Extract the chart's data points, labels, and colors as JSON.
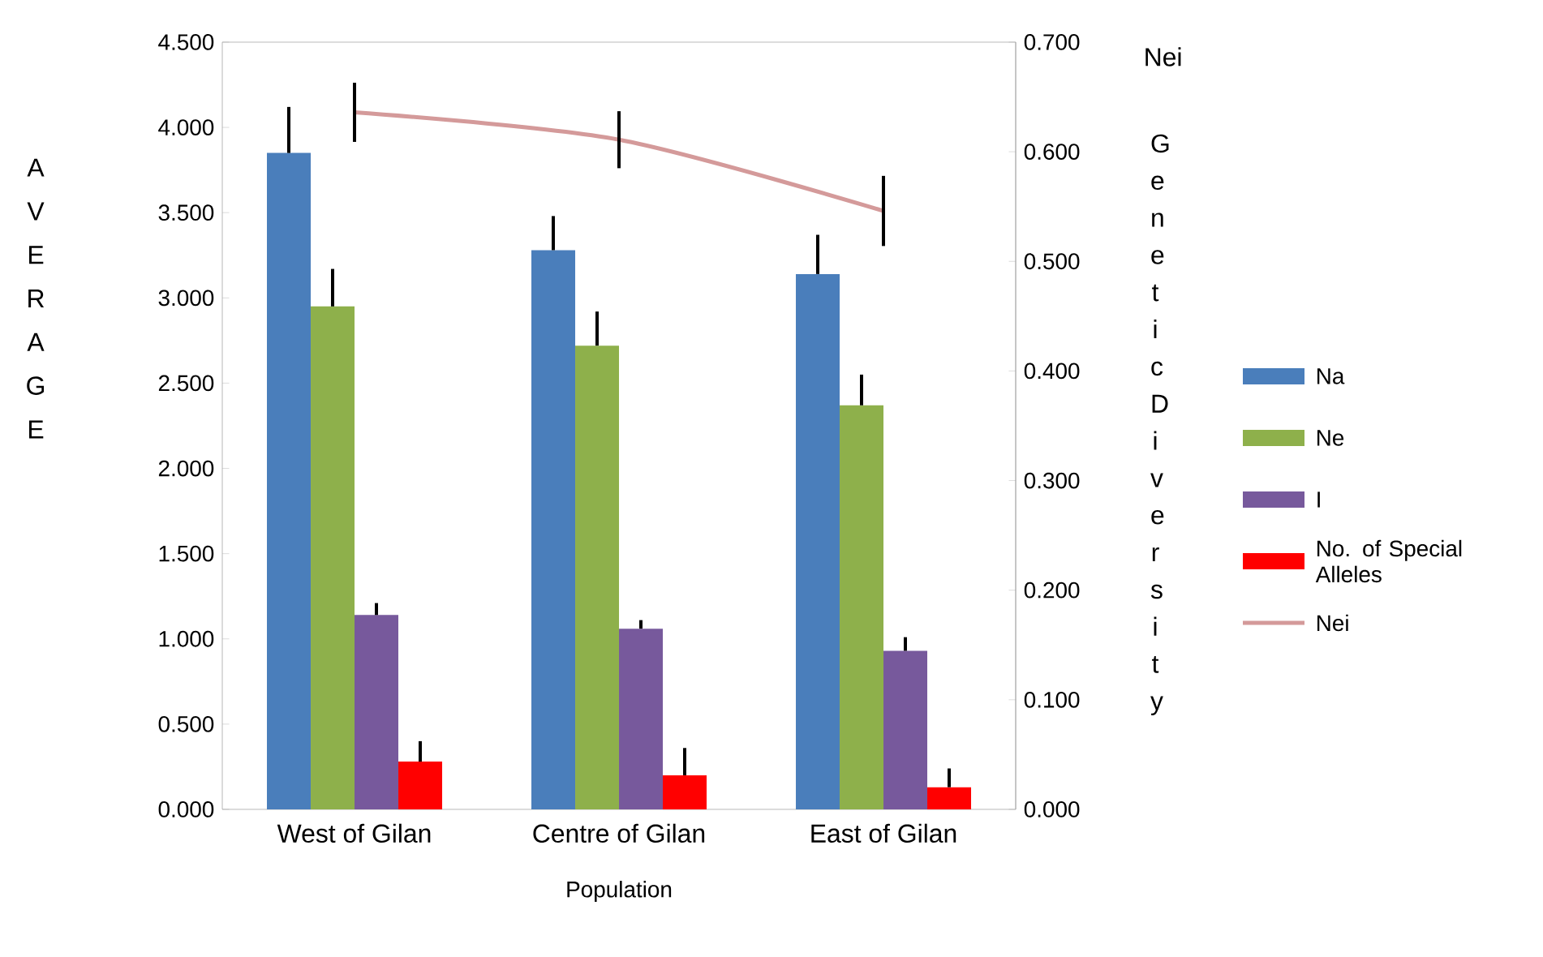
{
  "chart_data": {
    "type": "bar",
    "xlabel": "Population",
    "ylabel": "AVERAGE",
    "y2label": "Genetic Diversity",
    "annotations": [
      "Nei"
    ],
    "categories": [
      "West of Gilan",
      "Centre of Gilan",
      "East of Gilan"
    ],
    "series": [
      {
        "name": "Na",
        "color": "#4a7ebb",
        "values": [
          3.85,
          3.28,
          3.14
        ],
        "errors": [
          [
            3.85,
            4.12
          ],
          [
            3.28,
            3.48
          ],
          [
            3.14,
            3.37
          ]
        ]
      },
      {
        "name": "Ne",
        "color": "#8eb04b",
        "values": [
          2.95,
          2.72,
          2.37
        ],
        "errors": [
          [
            2.95,
            3.17
          ],
          [
            2.72,
            2.92
          ],
          [
            2.37,
            2.55
          ]
        ]
      },
      {
        "name": "I",
        "color": "#77599c",
        "values": [
          1.14,
          1.06,
          0.93
        ],
        "errors": [
          [
            1.14,
            1.21
          ],
          [
            1.06,
            1.11
          ],
          [
            0.93,
            1.01
          ]
        ]
      },
      {
        "name": "No. of Special Alleles",
        "color": "#ff0000",
        "values": [
          0.28,
          0.2,
          0.13
        ],
        "errors": [
          [
            0.28,
            0.4
          ],
          [
            0.2,
            0.36
          ],
          [
            0.13,
            0.24
          ]
        ]
      },
      {
        "name": "Nei",
        "type": "line",
        "axis": "y2",
        "color": "#d49a9a",
        "values": [
          0.636,
          0.611,
          0.546
        ],
        "errors": [
          0.027,
          0.026,
          0.032
        ]
      }
    ],
    "ylim": [
      0,
      4.5
    ],
    "yticks": [
      {
        "value": 0,
        "label": "0.000"
      },
      {
        "value": 0.5,
        "label": "0.500"
      },
      {
        "value": 1,
        "label": "1.000"
      },
      {
        "value": 1.5,
        "label": "1.500"
      },
      {
        "value": 2,
        "label": "2.000"
      },
      {
        "value": 2.5,
        "label": "2.500"
      },
      {
        "value": 3,
        "label": "3.000"
      },
      {
        "value": 3.5,
        "label": "3.500"
      },
      {
        "value": 4,
        "label": "4.000"
      },
      {
        "value": 4.5,
        "label": "4.500"
      }
    ],
    "y2lim": [
      0,
      0.7
    ],
    "y2ticks": [
      {
        "value": 0,
        "label": "0.000"
      },
      {
        "value": 0.1,
        "label": "0.100"
      },
      {
        "value": 0.2,
        "label": "0.200"
      },
      {
        "value": 0.3,
        "label": "0.300"
      },
      {
        "value": 0.4,
        "label": "0.400"
      },
      {
        "value": 0.5,
        "label": "0.500"
      },
      {
        "value": 0.6,
        "label": "0.600"
      },
      {
        "value": 0.7,
        "label": "0.700"
      }
    ],
    "legend": "right",
    "grid": false
  }
}
